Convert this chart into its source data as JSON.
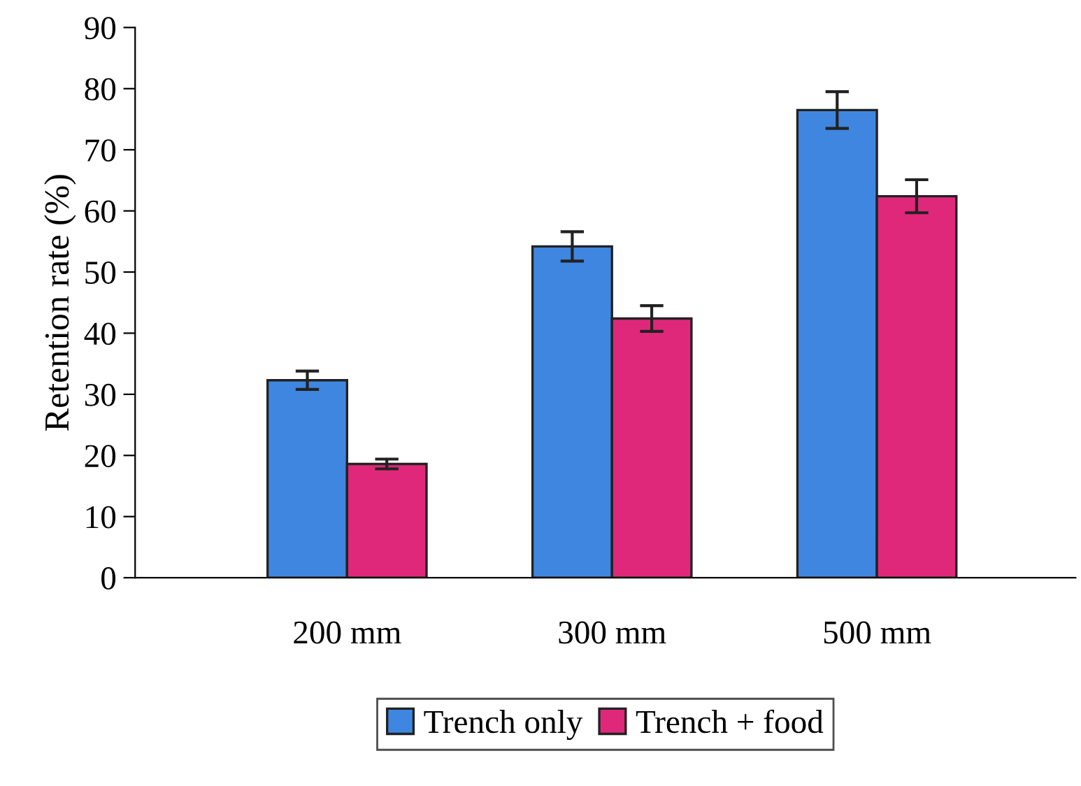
{
  "chart_data": {
    "type": "bar",
    "ylabel": "Retention rate (%)",
    "categories": [
      "200 mm",
      "300 mm",
      "500 mm"
    ],
    "series": [
      {
        "name": "Trench only",
        "color": "#3f86e0",
        "values": [
          32.3,
          54.2,
          76.5
        ],
        "errors": [
          1.5,
          2.4,
          3.0
        ]
      },
      {
        "name": "Trench + food",
        "color": "#e0287a",
        "values": [
          18.6,
          42.4,
          62.4
        ],
        "errors": [
          0.8,
          2.1,
          2.7
        ]
      }
    ],
    "ylim": [
      0,
      90
    ],
    "yticks": [
      0,
      10,
      20,
      30,
      40,
      50,
      60,
      70,
      80,
      90
    ],
    "grid": false,
    "legend": "bottom"
  }
}
